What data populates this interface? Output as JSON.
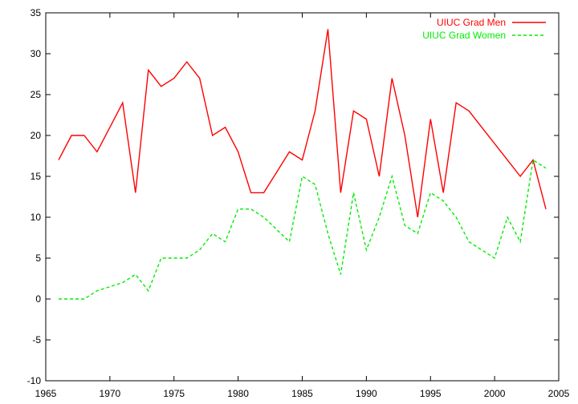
{
  "chart_data": {
    "type": "line",
    "xlim": [
      1965,
      2005
    ],
    "ylim": [
      -10,
      35
    ],
    "xticks": [
      1965,
      1970,
      1975,
      1980,
      1985,
      1990,
      1995,
      2000,
      2005
    ],
    "yticks": [
      -10,
      -5,
      0,
      5,
      10,
      15,
      20,
      25,
      30,
      35
    ],
    "grid": false,
    "legend_position": "top-right",
    "series": [
      {
        "name": "UIUC Grad Men",
        "color": "#ff0000",
        "dash": "solid",
        "x": [
          1966,
          1967,
          1968,
          1969,
          1970,
          1971,
          1972,
          1973,
          1974,
          1975,
          1976,
          1977,
          1978,
          1979,
          1980,
          1981,
          1982,
          1983,
          1984,
          1985,
          1986,
          1987,
          1988,
          1989,
          1990,
          1991,
          1992,
          1993,
          1994,
          1995,
          1996,
          1997,
          1998,
          1999,
          2000,
          2001,
          2002,
          2003,
          2004
        ],
        "y": [
          17,
          20,
          20,
          18,
          21,
          24,
          13,
          28,
          26,
          27,
          29,
          27,
          20,
          21,
          18,
          13,
          13,
          15.5,
          18,
          17,
          23,
          33,
          13,
          23,
          22,
          15,
          27,
          20,
          10,
          22,
          13,
          24,
          23,
          21,
          19,
          17,
          15,
          17,
          11
        ]
      },
      {
        "name": "UIUC Grad Women",
        "color": "#00ee00",
        "dash": "dashed",
        "x": [
          1966,
          1967,
          1968,
          1969,
          1970,
          1971,
          1972,
          1973,
          1974,
          1975,
          1976,
          1977,
          1978,
          1979,
          1980,
          1981,
          1982,
          1983,
          1984,
          1985,
          1986,
          1987,
          1988,
          1989,
          1990,
          1991,
          1992,
          1993,
          1994,
          1995,
          1996,
          1997,
          1998,
          1999,
          2000,
          2001,
          2002,
          2003,
          2004
        ],
        "y": [
          0,
          0,
          0,
          1,
          1.5,
          2,
          3,
          1,
          5,
          5,
          5,
          6,
          8,
          7,
          11,
          11,
          10,
          8.5,
          7,
          15,
          14,
          8,
          3,
          13,
          6,
          10,
          15,
          9,
          8,
          13,
          12,
          10,
          7,
          6,
          5,
          10,
          7,
          17,
          16
        ]
      }
    ]
  }
}
